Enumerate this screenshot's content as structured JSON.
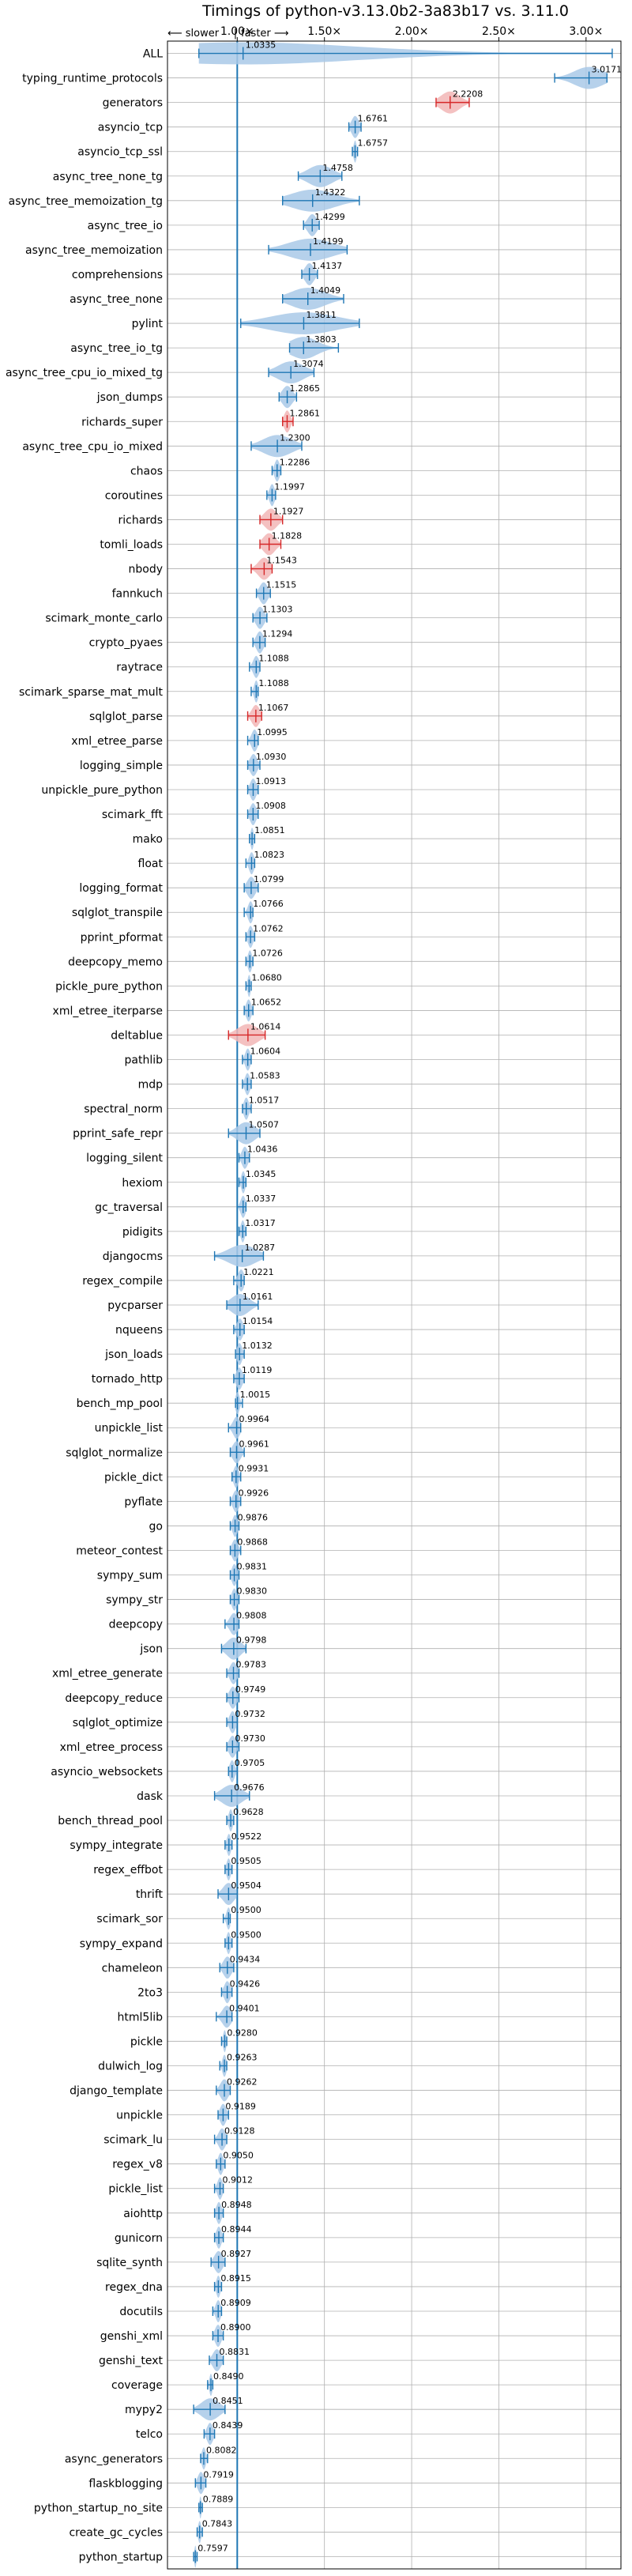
{
  "chart_data": {
    "type": "violin",
    "title": "Timings of python-v3.13.0b2-3a83b17 vs. 3.11.0",
    "xlabel": "",
    "ylabel": "",
    "x_axis_position": "top",
    "xlim": [
      0.6,
      3.2
    ],
    "xticks": [
      1.0,
      1.5,
      2.0,
      2.5,
      3.0
    ],
    "xtick_labels": [
      "1.00×",
      "1.50×",
      "2.00×",
      "2.50×",
      "3.00×"
    ],
    "direction_labels": {
      "slower": "⟵ slower",
      "sep": "|",
      "faster": "faster ⟶"
    },
    "reference_line": 1.0,
    "grid": true,
    "colors": {
      "normal": "#1f77b4",
      "normal_fill": "#a9c9e8",
      "significant": "#d62728",
      "significant_fill": "#f2b6b6",
      "grid": "#b0b0b0"
    },
    "categories": [
      "ALL",
      "typing_runtime_protocols",
      "generators",
      "asyncio_tcp",
      "asyncio_tcp_ssl",
      "async_tree_none_tg",
      "async_tree_memoization_tg",
      "async_tree_io",
      "async_tree_memoization",
      "comprehensions",
      "async_tree_none",
      "pylint",
      "async_tree_io_tg",
      "async_tree_cpu_io_mixed_tg",
      "json_dumps",
      "richards_super",
      "async_tree_cpu_io_mixed",
      "chaos",
      "coroutines",
      "richards",
      "tomli_loads",
      "nbody",
      "fannkuch",
      "scimark_monte_carlo",
      "crypto_pyaes",
      "raytrace",
      "scimark_sparse_mat_mult",
      "sqlglot_parse",
      "xml_etree_parse",
      "logging_simple",
      "unpickle_pure_python",
      "scimark_fft",
      "mako",
      "float",
      "logging_format",
      "sqlglot_transpile",
      "pprint_pformat",
      "deepcopy_memo",
      "pickle_pure_python",
      "xml_etree_iterparse",
      "deltablue",
      "pathlib",
      "mdp",
      "spectral_norm",
      "pprint_safe_repr",
      "logging_silent",
      "hexiom",
      "gc_traversal",
      "pidigits",
      "djangocms",
      "regex_compile",
      "pycparser",
      "nqueens",
      "json_loads",
      "tornado_http",
      "bench_mp_pool",
      "unpickle_list",
      "sqlglot_normalize",
      "pickle_dict",
      "pyflate",
      "go",
      "meteor_contest",
      "sympy_sum",
      "sympy_str",
      "deepcopy",
      "json",
      "xml_etree_generate",
      "deepcopy_reduce",
      "sqlglot_optimize",
      "xml_etree_process",
      "asyncio_websockets",
      "dask",
      "bench_thread_pool",
      "sympy_integrate",
      "regex_effbot",
      "thrift",
      "scimark_sor",
      "sympy_expand",
      "chameleon",
      "2to3",
      "html5lib",
      "pickle",
      "dulwich_log",
      "django_template",
      "unpickle",
      "scimark_lu",
      "regex_v8",
      "pickle_list",
      "aiohttp",
      "gunicorn",
      "sqlite_synth",
      "regex_dna",
      "docutils",
      "genshi_xml",
      "genshi_text",
      "coverage",
      "mypy2",
      "telco",
      "async_generators",
      "flaskblogging",
      "python_startup_no_site",
      "create_gc_cycles",
      "python_startup"
    ],
    "values": [
      1.0335,
      3.0171,
      2.2208,
      1.6761,
      1.6757,
      1.4758,
      1.4322,
      1.4299,
      1.4199,
      1.4137,
      1.4049,
      1.3811,
      1.3803,
      1.3074,
      1.2865,
      1.2861,
      1.23,
      1.2286,
      1.1997,
      1.1927,
      1.1828,
      1.1543,
      1.1515,
      1.1303,
      1.1294,
      1.1088,
      1.1088,
      1.1067,
      1.0995,
      1.093,
      1.0913,
      1.0908,
      1.0851,
      1.0823,
      1.0799,
      1.0766,
      1.0762,
      1.0726,
      1.068,
      1.0652,
      1.0614,
      1.0604,
      1.0583,
      1.0517,
      1.0507,
      1.0436,
      1.0345,
      1.0337,
      1.0317,
      1.0287,
      1.0221,
      1.0161,
      1.0154,
      1.0132,
      1.0119,
      1.0015,
      0.9964,
      0.9961,
      0.9931,
      0.9926,
      0.9876,
      0.9868,
      0.9831,
      0.983,
      0.9808,
      0.9798,
      0.9783,
      0.9749,
      0.9732,
      0.973,
      0.9705,
      0.9676,
      0.9628,
      0.9522,
      0.9505,
      0.9504,
      0.95,
      0.95,
      0.9434,
      0.9426,
      0.9401,
      0.928,
      0.9263,
      0.9262,
      0.9189,
      0.9128,
      0.905,
      0.9012,
      0.8948,
      0.8944,
      0.8927,
      0.8915,
      0.8909,
      0.89,
      0.8831,
      0.849,
      0.8451,
      0.8439,
      0.8082,
      0.7919,
      0.7889,
      0.7843,
      0.7597
    ],
    "value_labels": [
      "1.0335",
      "3.0171",
      "2.2208",
      "1.6761",
      "1.6757",
      "1.4758",
      "1.4322",
      "1.4299",
      "1.4199",
      "1.4137",
      "1.4049",
      "1.3811",
      "1.3803",
      "1.3074",
      "1.2865",
      "1.2861",
      "1.2300",
      "1.2286",
      "1.1997",
      "1.1927",
      "1.1828",
      "1.1543",
      "1.1515",
      "1.1303",
      "1.1294",
      "1.1088",
      "1.1088",
      "1.1067",
      "1.0995",
      "1.0930",
      "1.0913",
      "1.0908",
      "1.0851",
      "1.0823",
      "1.0799",
      "1.0766",
      "1.0762",
      "1.0726",
      "1.0680",
      "1.0652",
      "1.0614",
      "1.0604",
      "1.0583",
      "1.0517",
      "1.0507",
      "1.0436",
      "1.0345",
      "1.0337",
      "1.0317",
      "1.0287",
      "1.0221",
      "1.0161",
      "1.0154",
      "1.0132",
      "1.0119",
      "1.0015",
      "0.9964",
      "0.9961",
      "0.9931",
      "0.9926",
      "0.9876",
      "0.9868",
      "0.9831",
      "0.9830",
      "0.9808",
      "0.9798",
      "0.9783",
      "0.9749",
      "0.9732",
      "0.9730",
      "0.9705",
      "0.9676",
      "0.9628",
      "0.9522",
      "0.9505",
      "0.9504",
      "0.9500",
      "0.9500",
      "0.9434",
      "0.9426",
      "0.9401",
      "0.9280",
      "0.9263",
      "0.9262",
      "0.9189",
      "0.9128",
      "0.9050",
      "0.9012",
      "0.8948",
      "0.8944",
      "0.8927",
      "0.8915",
      "0.8909",
      "0.8900",
      "0.8831",
      "0.8490",
      "0.8451",
      "0.8439",
      "0.8082",
      "0.7919",
      "0.7889",
      "0.7843",
      "0.7597"
    ],
    "spread_min": [
      0.78,
      2.82,
      2.14,
      1.64,
      1.66,
      1.35,
      1.26,
      1.38,
      1.18,
      1.37,
      1.26,
      1.02,
      1.3,
      1.18,
      1.24,
      1.26,
      1.08,
      1.2,
      1.17,
      1.13,
      1.13,
      1.08,
      1.11,
      1.09,
      1.09,
      1.07,
      1.08,
      1.06,
      1.06,
      1.06,
      1.06,
      1.06,
      1.07,
      1.05,
      1.04,
      1.04,
      1.05,
      1.05,
      1.05,
      1.04,
      0.95,
      1.03,
      1.03,
      1.03,
      0.95,
      1.01,
      1.01,
      1.0,
      1.01,
      0.87,
      0.98,
      0.94,
      0.98,
      0.99,
      0.98,
      0.99,
      0.95,
      0.96,
      0.97,
      0.96,
      0.96,
      0.96,
      0.96,
      0.96,
      0.93,
      0.91,
      0.94,
      0.94,
      0.94,
      0.94,
      0.95,
      0.87,
      0.94,
      0.93,
      0.93,
      0.89,
      0.92,
      0.93,
      0.9,
      0.91,
      0.88,
      0.91,
      0.9,
      0.88,
      0.89,
      0.87,
      0.88,
      0.87,
      0.87,
      0.87,
      0.85,
      0.87,
      0.86,
      0.86,
      0.84,
      0.83,
      0.75,
      0.81,
      0.79,
      0.76,
      0.78,
      0.77,
      0.75
    ],
    "spread_max": [
      3.15,
      3.12,
      2.33,
      1.71,
      1.69,
      1.6,
      1.7,
      1.47,
      1.63,
      1.46,
      1.61,
      1.7,
      1.58,
      1.44,
      1.34,
      1.32,
      1.37,
      1.25,
      1.22,
      1.26,
      1.25,
      1.2,
      1.19,
      1.17,
      1.16,
      1.13,
      1.12,
      1.14,
      1.12,
      1.13,
      1.12,
      1.12,
      1.1,
      1.1,
      1.12,
      1.09,
      1.1,
      1.09,
      1.08,
      1.09,
      1.16,
      1.08,
      1.08,
      1.08,
      1.13,
      1.07,
      1.05,
      1.05,
      1.05,
      1.15,
      1.04,
      1.12,
      1.04,
      1.04,
      1.04,
      1.03,
      1.02,
      1.04,
      1.02,
      1.02,
      1.01,
      1.02,
      1.01,
      1.01,
      1.01,
      1.05,
      1.01,
      1.01,
      1.0,
      1.01,
      1.0,
      1.07,
      0.98,
      0.97,
      0.97,
      1.0,
      0.96,
      0.97,
      0.98,
      0.97,
      0.97,
      0.94,
      0.94,
      0.96,
      0.95,
      0.94,
      0.93,
      0.92,
      0.92,
      0.92,
      0.93,
      0.91,
      0.91,
      0.92,
      0.92,
      0.86,
      0.93,
      0.87,
      0.83,
      0.82,
      0.8,
      0.8,
      0.77
    ],
    "significant": [
      "generators",
      "richards_super",
      "richards",
      "tomli_loads",
      "nbody",
      "sqlglot_parse",
      "deltablue"
    ]
  }
}
